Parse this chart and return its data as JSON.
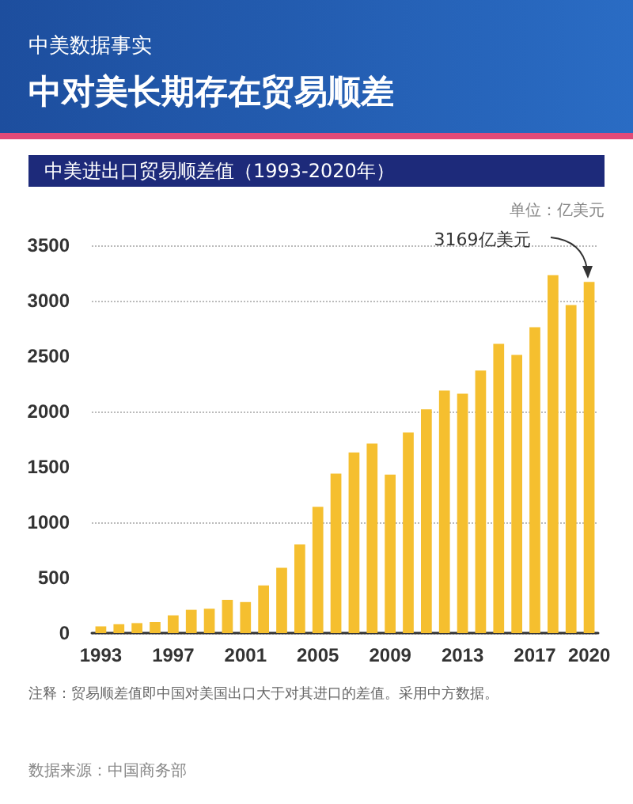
{
  "chart_data": {
    "type": "bar",
    "title": "中对美长期存在贸易顺差",
    "subtitle": "中美进出口贸易顺差值（1993-2020年）",
    "ylabel": "单位：亿美元",
    "categories": [
      "1993",
      null,
      null,
      null,
      "1997",
      null,
      null,
      null,
      "2001",
      null,
      null,
      null,
      "2005",
      null,
      null,
      null,
      "2009",
      null,
      null,
      null,
      "2013",
      null,
      null,
      null,
      "2017",
      null,
      null,
      "2020"
    ],
    "values": [
      60,
      80,
      90,
      100,
      160,
      210,
      220,
      300,
      280,
      430,
      590,
      800,
      1140,
      1440,
      1630,
      1710,
      1430,
      1810,
      2020,
      2190,
      2160,
      2370,
      2610,
      2510,
      2760,
      3230,
      2960,
      3169
    ],
    "color": "#f5bf2f",
    "ylim": [
      0,
      3500
    ],
    "yticks": [
      0,
      500,
      1000,
      1500,
      2000,
      2500,
      3000,
      3500
    ],
    "grid": "y",
    "annotations": [
      "中美数据事实",
      {
        "text": "3169亿美元",
        "x": "2020",
        "y": 3169
      },
      "注释：贸易顺差值即中国对美国出口大于对其进口的差值。采用中方数据。",
      "数据来源：中国商务部"
    ]
  }
}
